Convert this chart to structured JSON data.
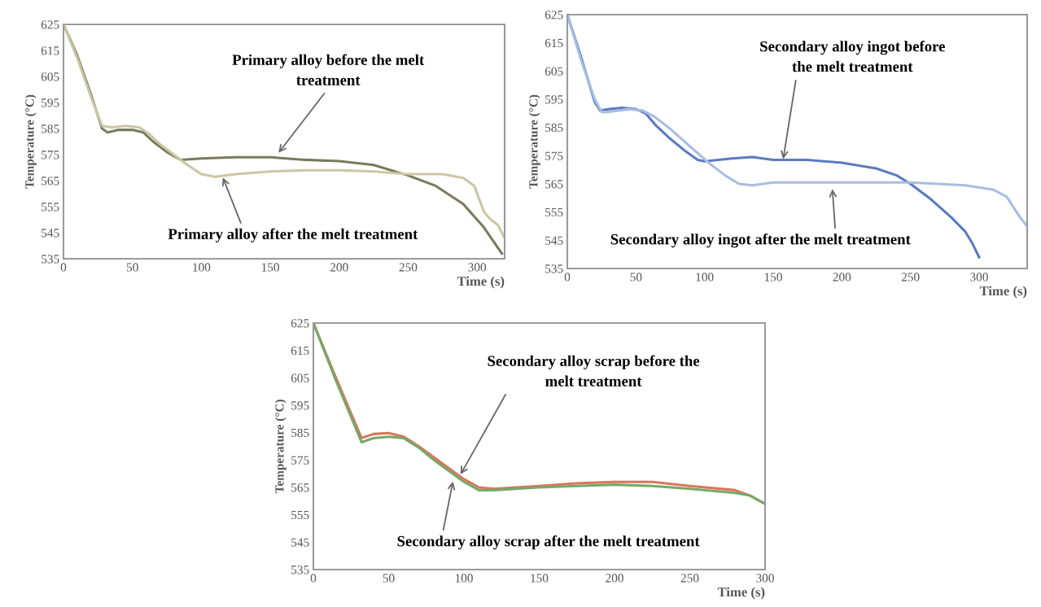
{
  "chart_data": [
    {
      "type": "line",
      "xlabel": "Time (s)",
      "ylabel": "Temperature (°C)",
      "xlim": [
        0,
        320
      ],
      "xticks": [
        0,
        50,
        100,
        150,
        200,
        250,
        300
      ],
      "ylim": [
        535,
        625
      ],
      "yticks": [
        535,
        545,
        555,
        565,
        575,
        585,
        595,
        605,
        615,
        625
      ],
      "grid": false,
      "marker": "none",
      "line_style": "solid",
      "annotations": [
        {
          "text": "Primary alloy before the melt\ntreatment",
          "x": 155,
          "y": 575
        },
        {
          "text": "Primary alloy after the melt treatment",
          "x": 115,
          "y": 567
        }
      ],
      "series": [
        {
          "color": "#7a7a5c",
          "x": [
            0,
            10,
            20,
            28,
            32,
            40,
            50,
            58,
            65,
            75,
            85,
            100,
            125,
            150,
            175,
            200,
            225,
            250,
            270,
            290,
            305,
            318
          ],
          "values": [
            625,
            613,
            598,
            585,
            583.5,
            584.5,
            584.5,
            583.5,
            580,
            576,
            573,
            573.5,
            574,
            574,
            573,
            572.5,
            571,
            567,
            563,
            556,
            547,
            537
          ]
        },
        {
          "color": "#cbc6a4",
          "x": [
            0,
            10,
            20,
            28,
            35,
            45,
            55,
            62,
            70,
            80,
            90,
            100,
            110,
            125,
            150,
            175,
            200,
            225,
            250,
            275,
            290,
            298,
            305,
            310,
            315,
            320
          ],
          "values": [
            625,
            612,
            597,
            586,
            585.5,
            586,
            585.5,
            583,
            579,
            575,
            571,
            567.5,
            566.5,
            567.5,
            568.5,
            569,
            569,
            568.5,
            567.5,
            567.5,
            566,
            563,
            553,
            550,
            548,
            543
          ]
        }
      ]
    },
    {
      "type": "line",
      "xlabel": "Time (s)",
      "ylabel": "Temperature (°C)",
      "xlim": [
        0,
        335
      ],
      "xticks": [
        0,
        50,
        100,
        150,
        200,
        250,
        300
      ],
      "ylim": [
        535,
        625
      ],
      "yticks": [
        535,
        545,
        555,
        565,
        575,
        585,
        595,
        605,
        615,
        625
      ],
      "grid": false,
      "marker": "none",
      "line_style": "solid",
      "annotations": [
        {
          "text": "Secondary alloy ingot before\nthe melt treatment",
          "x": 157,
          "y": 573
        },
        {
          "text": "Secondary alloy ingot after the melt treatment",
          "x": 193,
          "y": 564
        }
      ],
      "series": [
        {
          "color": "#5b7bbf",
          "x": [
            0,
            10,
            20,
            24,
            30,
            40,
            50,
            57,
            65,
            75,
            85,
            95,
            100,
            110,
            120,
            135,
            150,
            175,
            200,
            225,
            240,
            250,
            265,
            280,
            290,
            295,
            300
          ],
          "values": [
            625,
            610,
            594,
            591,
            591.5,
            592,
            591.5,
            590,
            585.5,
            581,
            577,
            573.5,
            573,
            573.5,
            574,
            574.5,
            573.5,
            573.5,
            572.5,
            570.5,
            568,
            565,
            559.5,
            553,
            548,
            544,
            539
          ]
        },
        {
          "color": "#a8bde3",
          "x": [
            0,
            10,
            20,
            25,
            30,
            45,
            55,
            63,
            75,
            90,
            103,
            115,
            125,
            135,
            150,
            175,
            200,
            225,
            250,
            270,
            290,
            310,
            320,
            330,
            335
          ],
          "values": [
            625,
            609,
            595,
            590.5,
            590.5,
            591.5,
            591,
            589,
            584.5,
            578,
            572.5,
            568,
            565,
            564.5,
            565.5,
            565.5,
            565.5,
            565.5,
            565.5,
            565,
            564.5,
            563,
            560.5,
            553,
            550
          ]
        }
      ]
    },
    {
      "type": "line",
      "xlabel": "Time (s)",
      "ylabel": "Temperature (°C)",
      "xlim": [
        0,
        300
      ],
      "xticks": [
        0,
        50,
        100,
        150,
        200,
        250,
        300
      ],
      "ylim": [
        535,
        625
      ],
      "yticks": [
        535,
        545,
        555,
        565,
        575,
        585,
        595,
        605,
        615,
        625
      ],
      "grid": false,
      "marker": "none",
      "line_style": "solid",
      "annotations": [
        {
          "text": "Secondary alloy scrap before the\nmelt treatment",
          "x": 97,
          "y": 569
        },
        {
          "text": "Secondary alloy scrap after the melt treatment",
          "x": 93,
          "y": 568
        }
      ],
      "series": [
        {
          "color": "#d9765a",
          "x": [
            0,
            15,
            32,
            40,
            50,
            60,
            70,
            80,
            90,
            100,
            110,
            120,
            150,
            175,
            200,
            225,
            250,
            280,
            290,
            300
          ],
          "values": [
            625,
            605,
            583,
            584.5,
            584.8,
            583.5,
            580,
            576,
            572,
            568,
            565,
            564.5,
            565.5,
            566.5,
            567,
            567,
            565.5,
            564,
            562,
            559
          ]
        },
        {
          "color": "#77a86a",
          "x": [
            0,
            15,
            32,
            40,
            50,
            60,
            70,
            80,
            90,
            100,
            110,
            120,
            150,
            175,
            200,
            225,
            250,
            280,
            290,
            300
          ],
          "values": [
            625,
            604,
            581.5,
            583,
            583.5,
            583,
            579.5,
            575,
            571,
            567,
            564,
            564,
            565,
            565.5,
            566,
            565.5,
            564.5,
            563,
            562,
            559
          ]
        }
      ]
    }
  ]
}
